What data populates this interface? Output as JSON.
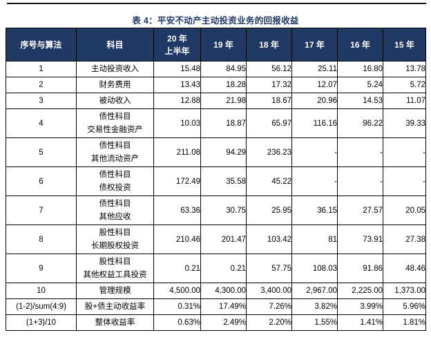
{
  "page": {
    "title": "表 4：平安不动产主动投资业务的回报收益"
  },
  "colors": {
    "header_bg": "#1F3864",
    "title_text": "#1F3864",
    "border": "#000000",
    "top_rule": "#141414"
  },
  "table": {
    "headers": [
      {
        "lines": [
          "序号与算法"
        ]
      },
      {
        "lines": [
          "科目"
        ]
      },
      {
        "lines": [
          "20 年",
          "上半年"
        ]
      },
      {
        "lines": [
          "19 年"
        ]
      },
      {
        "lines": [
          "18 年"
        ]
      },
      {
        "lines": [
          "17 年"
        ]
      },
      {
        "lines": [
          "16 年"
        ]
      },
      {
        "lines": [
          "15 年"
        ]
      }
    ],
    "rows": [
      {
        "seq": "1",
        "subject": [
          "主动投资收入"
        ],
        "values": [
          "15.48",
          "84.95",
          "56.12",
          "25.11",
          "16.80",
          "13.78"
        ]
      },
      {
        "seq": "2",
        "subject": [
          "财务费用"
        ],
        "values": [
          "13.43",
          "18.28",
          "17.32",
          "12.07",
          "5.24",
          "5.72"
        ]
      },
      {
        "seq": "3",
        "subject": [
          "被动收入"
        ],
        "values": [
          "12.88",
          "21.98",
          "18.67",
          "20.96",
          "14.53",
          "11.07"
        ]
      },
      {
        "seq": "4",
        "subject": [
          "债性科目",
          "交易性金融资产"
        ],
        "values": [
          "10.03",
          "18.87",
          "65.97",
          "116.16",
          "96.22",
          "39.33"
        ]
      },
      {
        "seq": "5",
        "subject": [
          "债性科目",
          "其他流动资产"
        ],
        "values": [
          "211.08",
          "94.29",
          "236.23",
          "-",
          "-",
          "-"
        ]
      },
      {
        "seq": "6",
        "subject": [
          "债性科目",
          "债权投资"
        ],
        "values": [
          "172.49",
          "35.58",
          "45.22",
          "-",
          "-",
          "-"
        ]
      },
      {
        "seq": "7",
        "subject": [
          "债性科目",
          "其他应收"
        ],
        "values": [
          "63.36",
          "30.75",
          "25.95",
          "36.15",
          "27.57",
          "20.05"
        ]
      },
      {
        "seq": "8",
        "subject": [
          "股性科目",
          "长期股权投资"
        ],
        "values": [
          "210.46",
          "201.47",
          "103.42",
          "81",
          "73.91",
          "27.38"
        ]
      },
      {
        "seq": "9",
        "subject": [
          "股性科目",
          "其他权益工具投资"
        ],
        "values": [
          "0.21",
          "0.21",
          "57.75",
          "108.03",
          "91.86",
          "48.46"
        ]
      },
      {
        "seq": "10",
        "subject": [
          "管理规模"
        ],
        "values": [
          "4,500.00",
          "4,300.00",
          "3,400.00",
          "2,967.00",
          "2,225.00",
          "1,373.00"
        ]
      },
      {
        "seq": "(1-2)/sum(4:9)",
        "subject": [
          "股+债主动收益率"
        ],
        "values": [
          "0.31%",
          "17.49%",
          "7.26%",
          "3.82%",
          "3.99%",
          "5.96%"
        ]
      },
      {
        "seq": "(1+3)/10",
        "subject": [
          "整体收益率"
        ],
        "values": [
          "0.63%",
          "2.49%",
          "2.20%",
          "1.55%",
          "1.41%",
          "1.81%"
        ]
      }
    ]
  }
}
